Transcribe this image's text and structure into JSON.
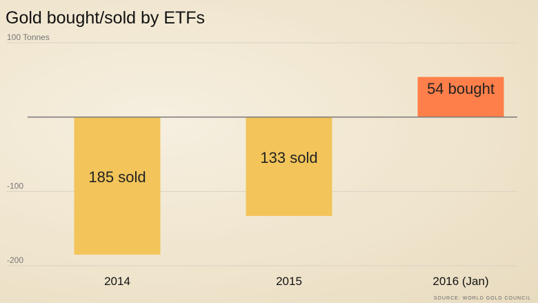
{
  "chart_data": {
    "type": "bar",
    "title": "Gold bought/sold by ETFs",
    "source": "SOURCE: WORLD GOLD COUNCIL",
    "categories": [
      "2014",
      "2015",
      "2016 (Jan)"
    ],
    "values": [
      -185,
      -133,
      54
    ],
    "value_labels": [
      "185 sold",
      "133 sold",
      "54 bought"
    ],
    "colors": [
      "#f2c45a",
      "#f2c45a",
      "#ff7f4a"
    ],
    "ylim": [
      -200,
      100
    ],
    "yticks": [
      {
        "value": 100,
        "label": "100 Tonnes"
      },
      -100,
      -200
    ],
    "grid": true
  }
}
